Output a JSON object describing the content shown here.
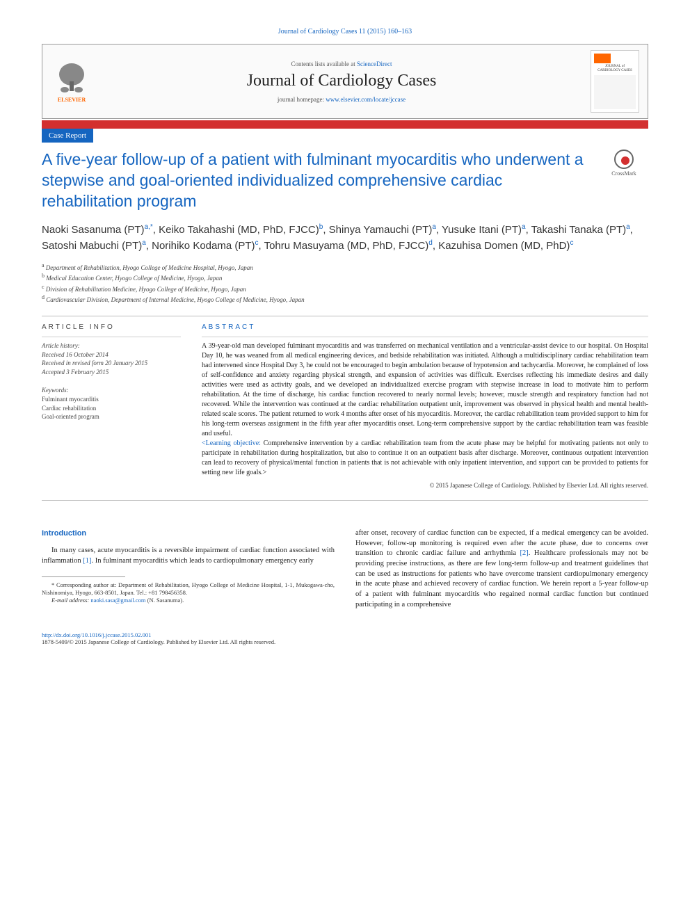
{
  "header": {
    "citation": "Journal of Cardiology Cases 11 (2015) 160–163",
    "contents_prefix": "Contents lists available at ",
    "contents_link": "ScienceDirect",
    "journal_name": "Journal of Cardiology Cases",
    "homepage_prefix": "journal homepage: ",
    "homepage_url": "www.elsevier.com/locate/jccase",
    "publisher": "ELSEVIER",
    "thumb_title": "JOURNAL of CARDIOLOGY CASES"
  },
  "article": {
    "type_label": "Case Report",
    "title": "A five-year follow-up of a patient with fulminant myocarditis who underwent a stepwise and goal-oriented individualized comprehensive cardiac rehabilitation program",
    "crossmark": "CrossMark",
    "authors_html": "Naoki Sasanuma (PT)<sup>a,*</sup>, Keiko Takahashi (MD, PhD, FJCC)<sup>b</sup>, Shinya Yamauchi (PT)<sup>a</sup>, Yusuke Itani (PT)<sup>a</sup>, Takashi Tanaka (PT)<sup>a</sup>, Satoshi Mabuchi (PT)<sup>a</sup>, Norihiko Kodama (PT)<sup>c</sup>, Tohru Masuyama (MD, PhD, FJCC)<sup>d</sup>, Kazuhisa Domen (MD, PhD)<sup>c</sup>",
    "affiliations": [
      "a Department of Rehabilitation, Hyogo College of Medicine Hospital, Hyogo, Japan",
      "b Medical Education Center, Hyogo College of Medicine, Hyogo, Japan",
      "c Division of Rehabilitation Medicine, Hyogo College of Medicine, Hyogo, Japan",
      "d Cardiovascular Division, Department of Internal Medicine, Hyogo College of Medicine, Hyogo, Japan"
    ]
  },
  "info": {
    "heading": "ARTICLE INFO",
    "history_title": "Article history:",
    "history": [
      "Received 16 October 2014",
      "Received in revised form 20 January 2015",
      "Accepted 3 February 2015"
    ],
    "keywords_title": "Keywords:",
    "keywords": [
      "Fulminant myocarditis",
      "Cardiac rehabilitation",
      "Goal-oriented program"
    ]
  },
  "abstract": {
    "heading": "ABSTRACT",
    "text": "A 39-year-old man developed fulminant myocarditis and was transferred on mechanical ventilation and a ventricular-assist device to our hospital. On Hospital Day 10, he was weaned from all medical engineering devices, and bedside rehabilitation was initiated. Although a multidisciplinary cardiac rehabilitation team had intervened since Hospital Day 3, he could not be encouraged to begin ambulation because of hypotension and tachycardia. Moreover, he complained of loss of self-confidence and anxiety regarding physical strength, and expansion of activities was difficult. Exercises reflecting his immediate desires and daily activities were used as activity goals, and we developed an individualized exercise program with stepwise increase in load to motivate him to perform rehabilitation. At the time of discharge, his cardiac function recovered to nearly normal levels; however, muscle strength and respiratory function had not recovered. While the intervention was continued at the cardiac rehabilitation outpatient unit, improvement was observed in physical health and mental health-related scale scores. The patient returned to work 4 months after onset of his myocarditis. Moreover, the cardiac rehabilitation team provided support to him for his long-term overseas assignment in the fifth year after myocarditis onset. Long-term comprehensive support by the cardiac rehabilitation team was feasible and useful.",
    "learning_label": "<Learning objective:",
    "learning_text": " Comprehensive intervention by a cardiac rehabilitation team from the acute phase may be helpful for motivating patients not only to participate in rehabilitation during hospitalization, but also to continue it on an outpatient basis after discharge. Moreover, continuous outpatient intervention can lead to recovery of physical/mental function in patients that is not achievable with only inpatient intervention, and support can be provided to patients for setting new life goals.>",
    "copyright": "© 2015 Japanese College of Cardiology. Published by Elsevier Ltd. All rights reserved."
  },
  "body": {
    "intro_heading": "Introduction",
    "intro_p1": "In many cases, acute myocarditis is a reversible impairment of cardiac function associated with inflammation ",
    "cite1": "[1]",
    "intro_p1b": ". In fulminant myocarditis which leads to cardiopulmonary emergency early",
    "col2": "after onset, recovery of cardiac function can be expected, if a medical emergency can be avoided. However, follow-up monitoring is required even after the acute phase, due to concerns over transition to chronic cardiac failure and arrhythmia ",
    "cite2": "[2]",
    "col2b": ". Healthcare professionals may not be providing precise instructions, as there are few long-term follow-up and treatment guidelines that can be used as instructions for patients who have overcome transient cardiopulmonary emergency in the acute phase and achieved recovery of cardiac function. We herein report a 5-year follow-up of a patient with fulminant myocarditis who regained normal cardiac function but continued participating in a comprehensive"
  },
  "footnote": {
    "corresponding": "* Corresponding author at: Department of Rehabilitation, Hyogo College of Medicine Hospital, 1-1, Mukogawa-cho, Nishinomiya, Hyogo, 663-8501, Japan. Tel.: +81 798456358.",
    "email_label": "E-mail address: ",
    "email": "naoki.sasa@gmail.com",
    "email_suffix": " (N. Sasanuma)."
  },
  "footer": {
    "doi": "http://dx.doi.org/10.1016/j.jccase.2015.02.001",
    "issn_line": "1878-5409/© 2015 Japanese College of Cardiology. Published by Elsevier Ltd. All rights reserved."
  },
  "colors": {
    "blue": "#1565c0",
    "red": "#d32f2f",
    "orange": "#ff6600"
  }
}
